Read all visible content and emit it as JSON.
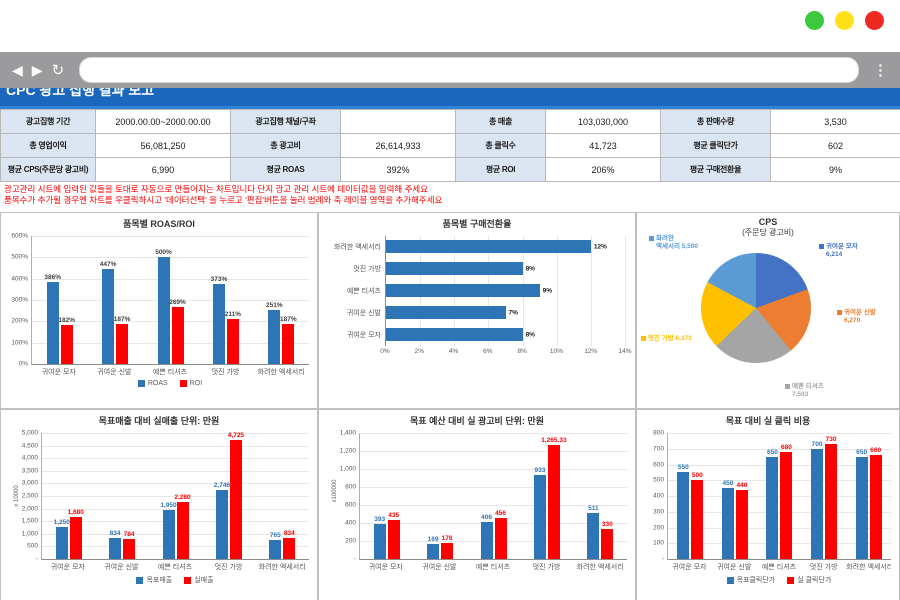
{
  "browser": {
    "traffic_lights": {
      "green": "#3dc93d",
      "yellow": "#ffe01a",
      "red": "#ee2a20"
    },
    "icons": {
      "back": "◀",
      "forward": "▶",
      "refresh": "↻",
      "menu": "⋮"
    },
    "url_value": ""
  },
  "page": {
    "title": "CPC 광고 집행 결과 보고"
  },
  "summary_table": {
    "rows": [
      [
        {
          "label": "광고집행 기간",
          "value": "2000.00.00~2000.00.00"
        },
        {
          "label": "광고집행 채널/구좌",
          "value": ""
        },
        {
          "label": "총 매출",
          "value": "103,030,000"
        },
        {
          "label": "총 판매수량",
          "value": "3,530"
        }
      ],
      [
        {
          "label": "총 영업이익",
          "value": "56,081,250"
        },
        {
          "label": "총 광고비",
          "value": "26,614,933"
        },
        {
          "label": "총 클릭수",
          "value": "41,723"
        },
        {
          "label": "평균 클릭단가",
          "value": "602"
        }
      ],
      [
        {
          "label": "평균 CPS(주문당 광고비)",
          "value": "6,990"
        },
        {
          "label": "평균 ROAS",
          "value": "392%"
        },
        {
          "label": "평균 ROI",
          "value": "206%"
        },
        {
          "label": "평균 구매전환율",
          "value": "9%"
        }
      ]
    ]
  },
  "notes": {
    "line1": "광고관리 시트에 입력된 값들을 토대로 자동으로 만들어지는 차트입니다 단지 광고 관리 시트에 데이터값을 입력해 주세요",
    "line2": "품목수가 추가될 경우엔 차트를 우클릭하시고 '데이터선택' 을 누르고 '편집'버튼을 눌러 범례와 축 레이블 영역을 추가해주세요"
  },
  "chart_data": [
    {
      "id": "roas-roi",
      "type": "bar",
      "title": "품목별 ROAS/ROI",
      "categories": [
        "귀여운 모자",
        "귀여운 신발",
        "예쁜 티셔츠",
        "멋진 가방",
        "화려한 액세서리"
      ],
      "series": [
        {
          "name": "ROAS",
          "color": "#2e75b6",
          "values": [
            386,
            447,
            500,
            373,
            251
          ],
          "labels": [
            "386%",
            "447%",
            "500%",
            "373%",
            "251%"
          ]
        },
        {
          "name": "ROI",
          "color": "#ff0000",
          "values": [
            182,
            187,
            269,
            211,
            187
          ],
          "labels": [
            "182%",
            "187%",
            "269%",
            "211%",
            "187%"
          ]
        }
      ],
      "ylim": [
        0,
        600
      ],
      "y_ticks": [
        "600%",
        "500%",
        "400%",
        "300%",
        "200%",
        "100%",
        "0%"
      ],
      "legend": [
        "ROAS",
        "ROI"
      ],
      "label_style": "dark"
    },
    {
      "id": "conversion-rate",
      "type": "hbar",
      "title": "품목별 구매전환율",
      "categories": [
        "화려한 액세서리",
        "멋진 가방",
        "예쁜 티셔츠",
        "귀여운 신발",
        "귀여운 모자"
      ],
      "values": [
        12,
        8,
        9,
        7,
        8
      ],
      "labels": [
        "12%",
        "8%",
        "9%",
        "7%",
        "8%"
      ],
      "xlim": [
        0,
        14
      ],
      "x_ticks": [
        "0%",
        "2%",
        "4%",
        "6%",
        "8%",
        "10%",
        "12%",
        "14%"
      ],
      "bar_color": "#2e75b6"
    },
    {
      "id": "cps-pie",
      "type": "pie",
      "title": "CPS",
      "subtitle": "(주문당 광고비)",
      "slices": [
        {
          "label": "귀여운 모자",
          "value": 6214,
          "display": "귀여운 모자\n6,214",
          "color": "#4472c4"
        },
        {
          "label": "귀여운 신발",
          "value": 6270,
          "display": "귀여운 신발\n6,270",
          "color": "#ed7d31"
        },
        {
          "label": "예쁜 티셔츠",
          "value": 7593,
          "display": "예쁜 티셔츠\n7,593",
          "color": "#a5a5a5"
        },
        {
          "label": "멋진 가방",
          "value": 6373,
          "display": "멋진 가방 6,373",
          "color": "#ffc000"
        },
        {
          "label": "화려한 액세서리",
          "value": 5500,
          "display": "화려한\n액세서리 5,500",
          "color": "#5b9bd5"
        }
      ]
    },
    {
      "id": "sales-vs-target",
      "type": "bar",
      "title": "목표매출 대비 실매출  단위: 만원",
      "categories": [
        "귀여운 모자",
        "귀여운 신발",
        "예쁜 티셔츠",
        "멋진 가방",
        "화려한 액세서리"
      ],
      "series": [
        {
          "name": "목표매출",
          "color": "#2e75b6",
          "values": [
            1250,
            834,
            1950,
            2746,
            765
          ],
          "labels": [
            "1,250",
            "834",
            "1,950",
            "2,746",
            "765"
          ]
        },
        {
          "name": "실매출",
          "color": "#ff0000",
          "values": [
            1680,
            784,
            2280,
            4725,
            834
          ],
          "labels": [
            "1,680",
            "784",
            "2,280",
            "4,725",
            "834"
          ]
        }
      ],
      "ylim": [
        0,
        5000
      ],
      "y_ticks": [
        "5,000",
        "4,500",
        "4,000",
        "3,500",
        "3,000",
        "2,500",
        "2,000",
        "1,500",
        "1,000",
        "500",
        "-"
      ],
      "axis_note": "x 10000",
      "legend": [
        "목표매출",
        "실매출"
      ],
      "label_style": "series"
    },
    {
      "id": "adcost-vs-budget",
      "type": "bar",
      "title": "목표 예산 대비 실 광고비 단위: 만원",
      "categories": [
        "귀여운 모자",
        "귀여운 신발",
        "예쁜 티셔츠",
        "멋진 가방",
        "화려한 액세서리"
      ],
      "series": [
        {
          "name": "",
          "color": "#2e75b6",
          "values": [
            393,
            169,
            406,
            933,
            511
          ],
          "labels": [
            "393",
            "169",
            "406",
            "933",
            "511"
          ]
        },
        {
          "name": "",
          "color": "#ff0000",
          "values": [
            435,
            176,
            456,
            1265.33,
            330
          ],
          "labels": [
            "435",
            "176",
            "456",
            "1,265.33",
            "330"
          ]
        }
      ],
      "ylim": [
        0,
        1400
      ],
      "y_ticks": [
        "1,400",
        "1,200",
        "1,000",
        "800",
        "600",
        "400",
        "200",
        "-"
      ],
      "axis_note": "x100000",
      "label_style": "series"
    },
    {
      "id": "cpc-vs-target",
      "type": "bar",
      "title": "목표 대비 실 클릭 비용",
      "categories": [
        "귀여운 모자",
        "귀여운 신발",
        "예쁜 티셔츠",
        "멋진 가방",
        "화려한 액세서리"
      ],
      "series": [
        {
          "name": "목표클릭단가",
          "color": "#2e75b6",
          "values": [
            550,
            450,
            650,
            700,
            650
          ],
          "labels": [
            "550",
            "450",
            "650",
            "700",
            "650"
          ]
        },
        {
          "name": "실 클릭단가",
          "color": "#ff0000",
          "values": [
            500,
            440,
            680,
            730,
            660
          ],
          "labels": [
            "500",
            "440",
            "680",
            "730",
            "660"
          ]
        }
      ],
      "ylim": [
        0,
        800
      ],
      "y_ticks": [
        "800",
        "700",
        "600",
        "500",
        "400",
        "300",
        "200",
        "100",
        "-"
      ],
      "legend": [
        "목표클릭단가",
        "실 클릭단가"
      ],
      "label_style": "series"
    }
  ]
}
